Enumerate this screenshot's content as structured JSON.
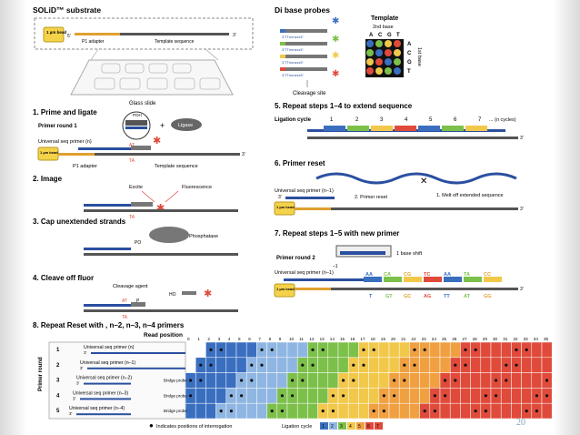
{
  "panels": {
    "substrate": {
      "title": "SOLiD™ substrate",
      "bead": "1 µm bead",
      "p1": "P1 adapter",
      "template": "Template sequence",
      "five": "5'",
      "three": "3'",
      "glass": "Glass slide"
    },
    "probes": {
      "title": "Di base probes",
      "template_label": "Template",
      "second_base": "2nd base",
      "first_base": "1st base",
      "cleavage": "Cleavage site",
      "bases": [
        "A",
        "C",
        "G",
        "T"
      ],
      "probe_seq": "3'TTnnnzzz5'"
    },
    "step1": {
      "title": "1. Prime and ligate",
      "round": "Primer round 1",
      "primer": "Universal seq primer (n)",
      "ligase": "Ligase",
      "p1": "P1 adapter",
      "template": "Template sequence",
      "bead": "1 µm bead",
      "poh": "POH",
      "at": "AT",
      "ta": "TA",
      "three": "3'",
      "five": "5'"
    },
    "step2": {
      "title": "2. Image",
      "excite": "Excite",
      "fluor": "Fluorescence",
      "ta": "TA"
    },
    "step3": {
      "title": "3. Cap unextended strands",
      "phosphatase": "Phosphatase",
      "po": "PO"
    },
    "step4": {
      "title": "4. Cleave off fluor",
      "agent": "Cleavage agent",
      "ho": "HO",
      "at": "AT",
      "ta": "TA",
      "p": "P"
    },
    "step5": {
      "title": "5. Repeat steps 1–4 to extend sequence",
      "ligation": "Ligation cycle",
      "cycles": [
        "1",
        "2",
        "3",
        "4",
        "5",
        "6",
        "7"
      ],
      "ncycles": "... (n cycles)",
      "three": "3'"
    },
    "step6": {
      "title": "6. Primer reset",
      "primer": "Universal seq primer (n–1)",
      "reset": "2. Primer reset",
      "melt": "1. Melt off extended sequence",
      "three": "3'",
      "bead": "1 µm bead"
    },
    "step7": {
      "title": "7. Repeat steps 1–5 with new primer",
      "round": "Primer round 2",
      "shift": "1 base shift",
      "minus": "–1",
      "primer": "Universal seq primer (n–1)",
      "top_pairs": [
        "AA",
        "CA",
        "CG",
        "TC",
        "AA",
        "TA",
        "CC"
      ],
      "bottom_pairs": [
        "T",
        "GT",
        "GC",
        "AG",
        "TT",
        "AT",
        "GG"
      ],
      "bead": "1 µm bead",
      "three": "3'"
    },
    "step8": {
      "title": "8. Repeat Reset with , n–2, n–3, n–4 primers",
      "read_position": "Read position",
      "primer_round": "Primer round",
      "positions": [
        "0",
        "1",
        "2",
        "3",
        "4",
        "5",
        "6",
        "7",
        "8",
        "9",
        "10",
        "11",
        "12",
        "13",
        "14",
        "15",
        "16",
        "17",
        "18",
        "19",
        "20",
        "21",
        "22",
        "23",
        "24",
        "25",
        "26",
        "27",
        "28",
        "29",
        "30",
        "31",
        "32",
        "33",
        "34",
        "35"
      ],
      "rows": [
        {
          "n": "1",
          "primer": "Universal seq primer (n)"
        },
        {
          "n": "2",
          "primer": "Universal seq primer (n–1)"
        },
        {
          "n": "3",
          "primer": "Universal seq primer (n–2)",
          "bridge": "Bridge probe"
        },
        {
          "n": "4",
          "primer": "Universal seq primer (n–3)",
          "bridge": "Bridge probe"
        },
        {
          "n": "5",
          "primer": "Universal seq primer (n–4)",
          "bridge": "Bridge probe"
        }
      ],
      "legend": "Indicates positions of interrogation",
      "ligation": "Ligation cycle",
      "cycle_nums": [
        "1",
        "2",
        "3",
        "4",
        "5",
        "6",
        "7"
      ],
      "three": "3'"
    }
  },
  "colors": {
    "blue": "#3a6fc0",
    "lightblue": "#8fb6e2",
    "green": "#7cc04a",
    "yellow": "#f2c84b",
    "orange": "#f0a040",
    "red": "#e04a3a",
    "gray": "#555555",
    "primer_blue": "#2a4fa0",
    "bead_yellow": "#f4d24a"
  },
  "page_number": "20"
}
